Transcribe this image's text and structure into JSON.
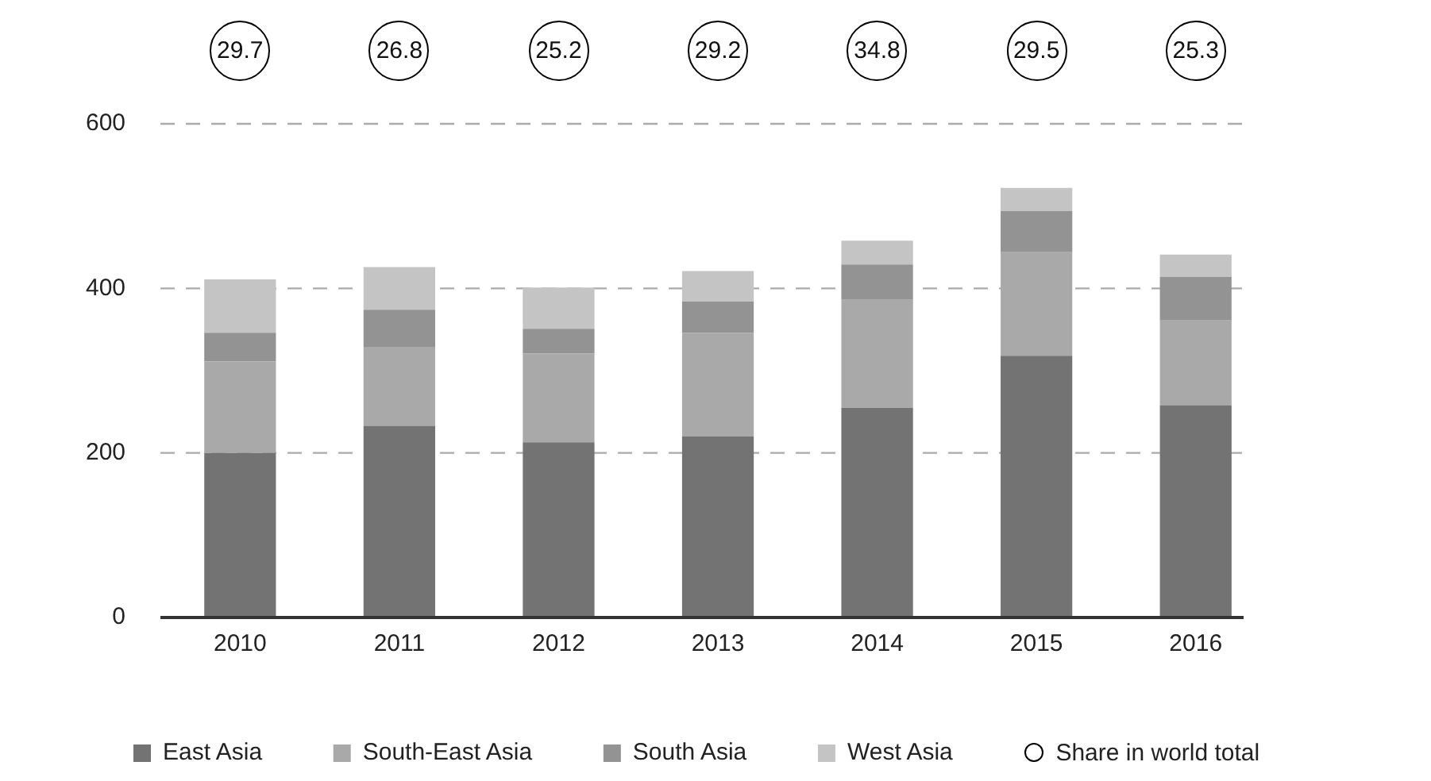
{
  "chart_data": {
    "type": "bar",
    "stacked": true,
    "categories": [
      "2010",
      "2011",
      "2012",
      "2013",
      "2014",
      "2015",
      "2016"
    ],
    "series": [
      {
        "name": "East Asia",
        "color": "#737373",
        "values": [
          200,
          233,
          213,
          220,
          255,
          318,
          258
        ]
      },
      {
        "name": "South-East Asia",
        "color": "#a9a9a9",
        "values": [
          111,
          96,
          108,
          126,
          131,
          126,
          103
        ]
      },
      {
        "name": "South Asia",
        "color": "#939393",
        "values": [
          35,
          45,
          30,
          38,
          43,
          50,
          53
        ]
      },
      {
        "name": "West Asia",
        "color": "#c4c4c4",
        "values": [
          65,
          52,
          50,
          37,
          29,
          28,
          27
        ]
      }
    ],
    "annotations": [
      "29.7",
      "26.8",
      "25.2",
      "29.2",
      "34.8",
      "29.5",
      "25.3",
      "Share in world total"
    ],
    "ylim": [
      0,
      600
    ],
    "yticks": [
      0,
      200,
      400,
      600
    ],
    "grid": "y",
    "legend": "bottom"
  }
}
